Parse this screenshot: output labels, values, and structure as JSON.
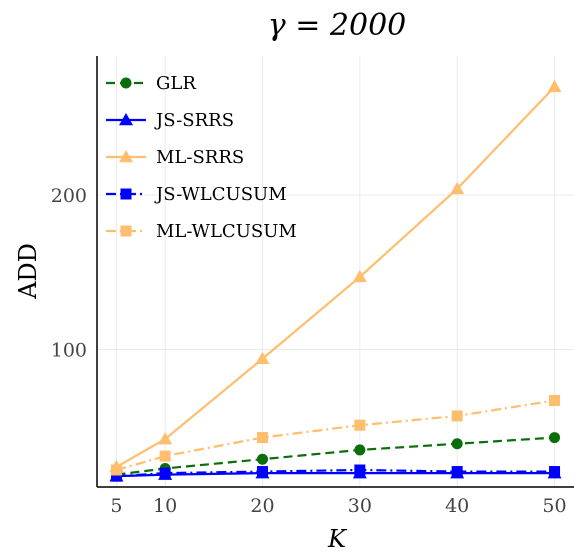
{
  "chart_data": {
    "type": "line",
    "title": "γ = 2000",
    "xlabel": "K",
    "ylabel": "ADD",
    "x": [
      5,
      10,
      20,
      30,
      40,
      50
    ],
    "x_ticks": [
      5,
      10,
      20,
      30,
      40,
      50
    ],
    "y_ticks": [
      100,
      200
    ],
    "xlim": [
      3,
      52
    ],
    "ylim": [
      11,
      290
    ],
    "grid": true,
    "legend_position": "top-left",
    "series": [
      {
        "name": "GLR",
        "values": [
          19,
          23,
          29,
          35,
          39,
          43
        ],
        "color": "#0a6e0a",
        "dash": "dashed",
        "marker": "circle"
      },
      {
        "name": "JS-SRRS",
        "values": [
          18,
          19,
          20,
          20,
          20,
          20
        ],
        "color": "#0000ff",
        "dash": "solid",
        "marker": "triangle"
      },
      {
        "name": "ML-SRRS",
        "values": [
          24,
          42,
          94,
          147,
          204,
          270
        ],
        "color": "#ffbd6e",
        "dash": "solid",
        "marker": "triangle"
      },
      {
        "name": "JS-WLCUSUM",
        "values": [
          18,
          20,
          21,
          22,
          21,
          21
        ],
        "color": "#0000ff",
        "dash": "dashdot",
        "marker": "square"
      },
      {
        "name": "ML-WLCUSUM",
        "values": [
          22,
          31,
          43,
          51,
          57,
          67
        ],
        "color": "#ffbd6e",
        "dash": "dashdot",
        "marker": "square"
      }
    ]
  }
}
